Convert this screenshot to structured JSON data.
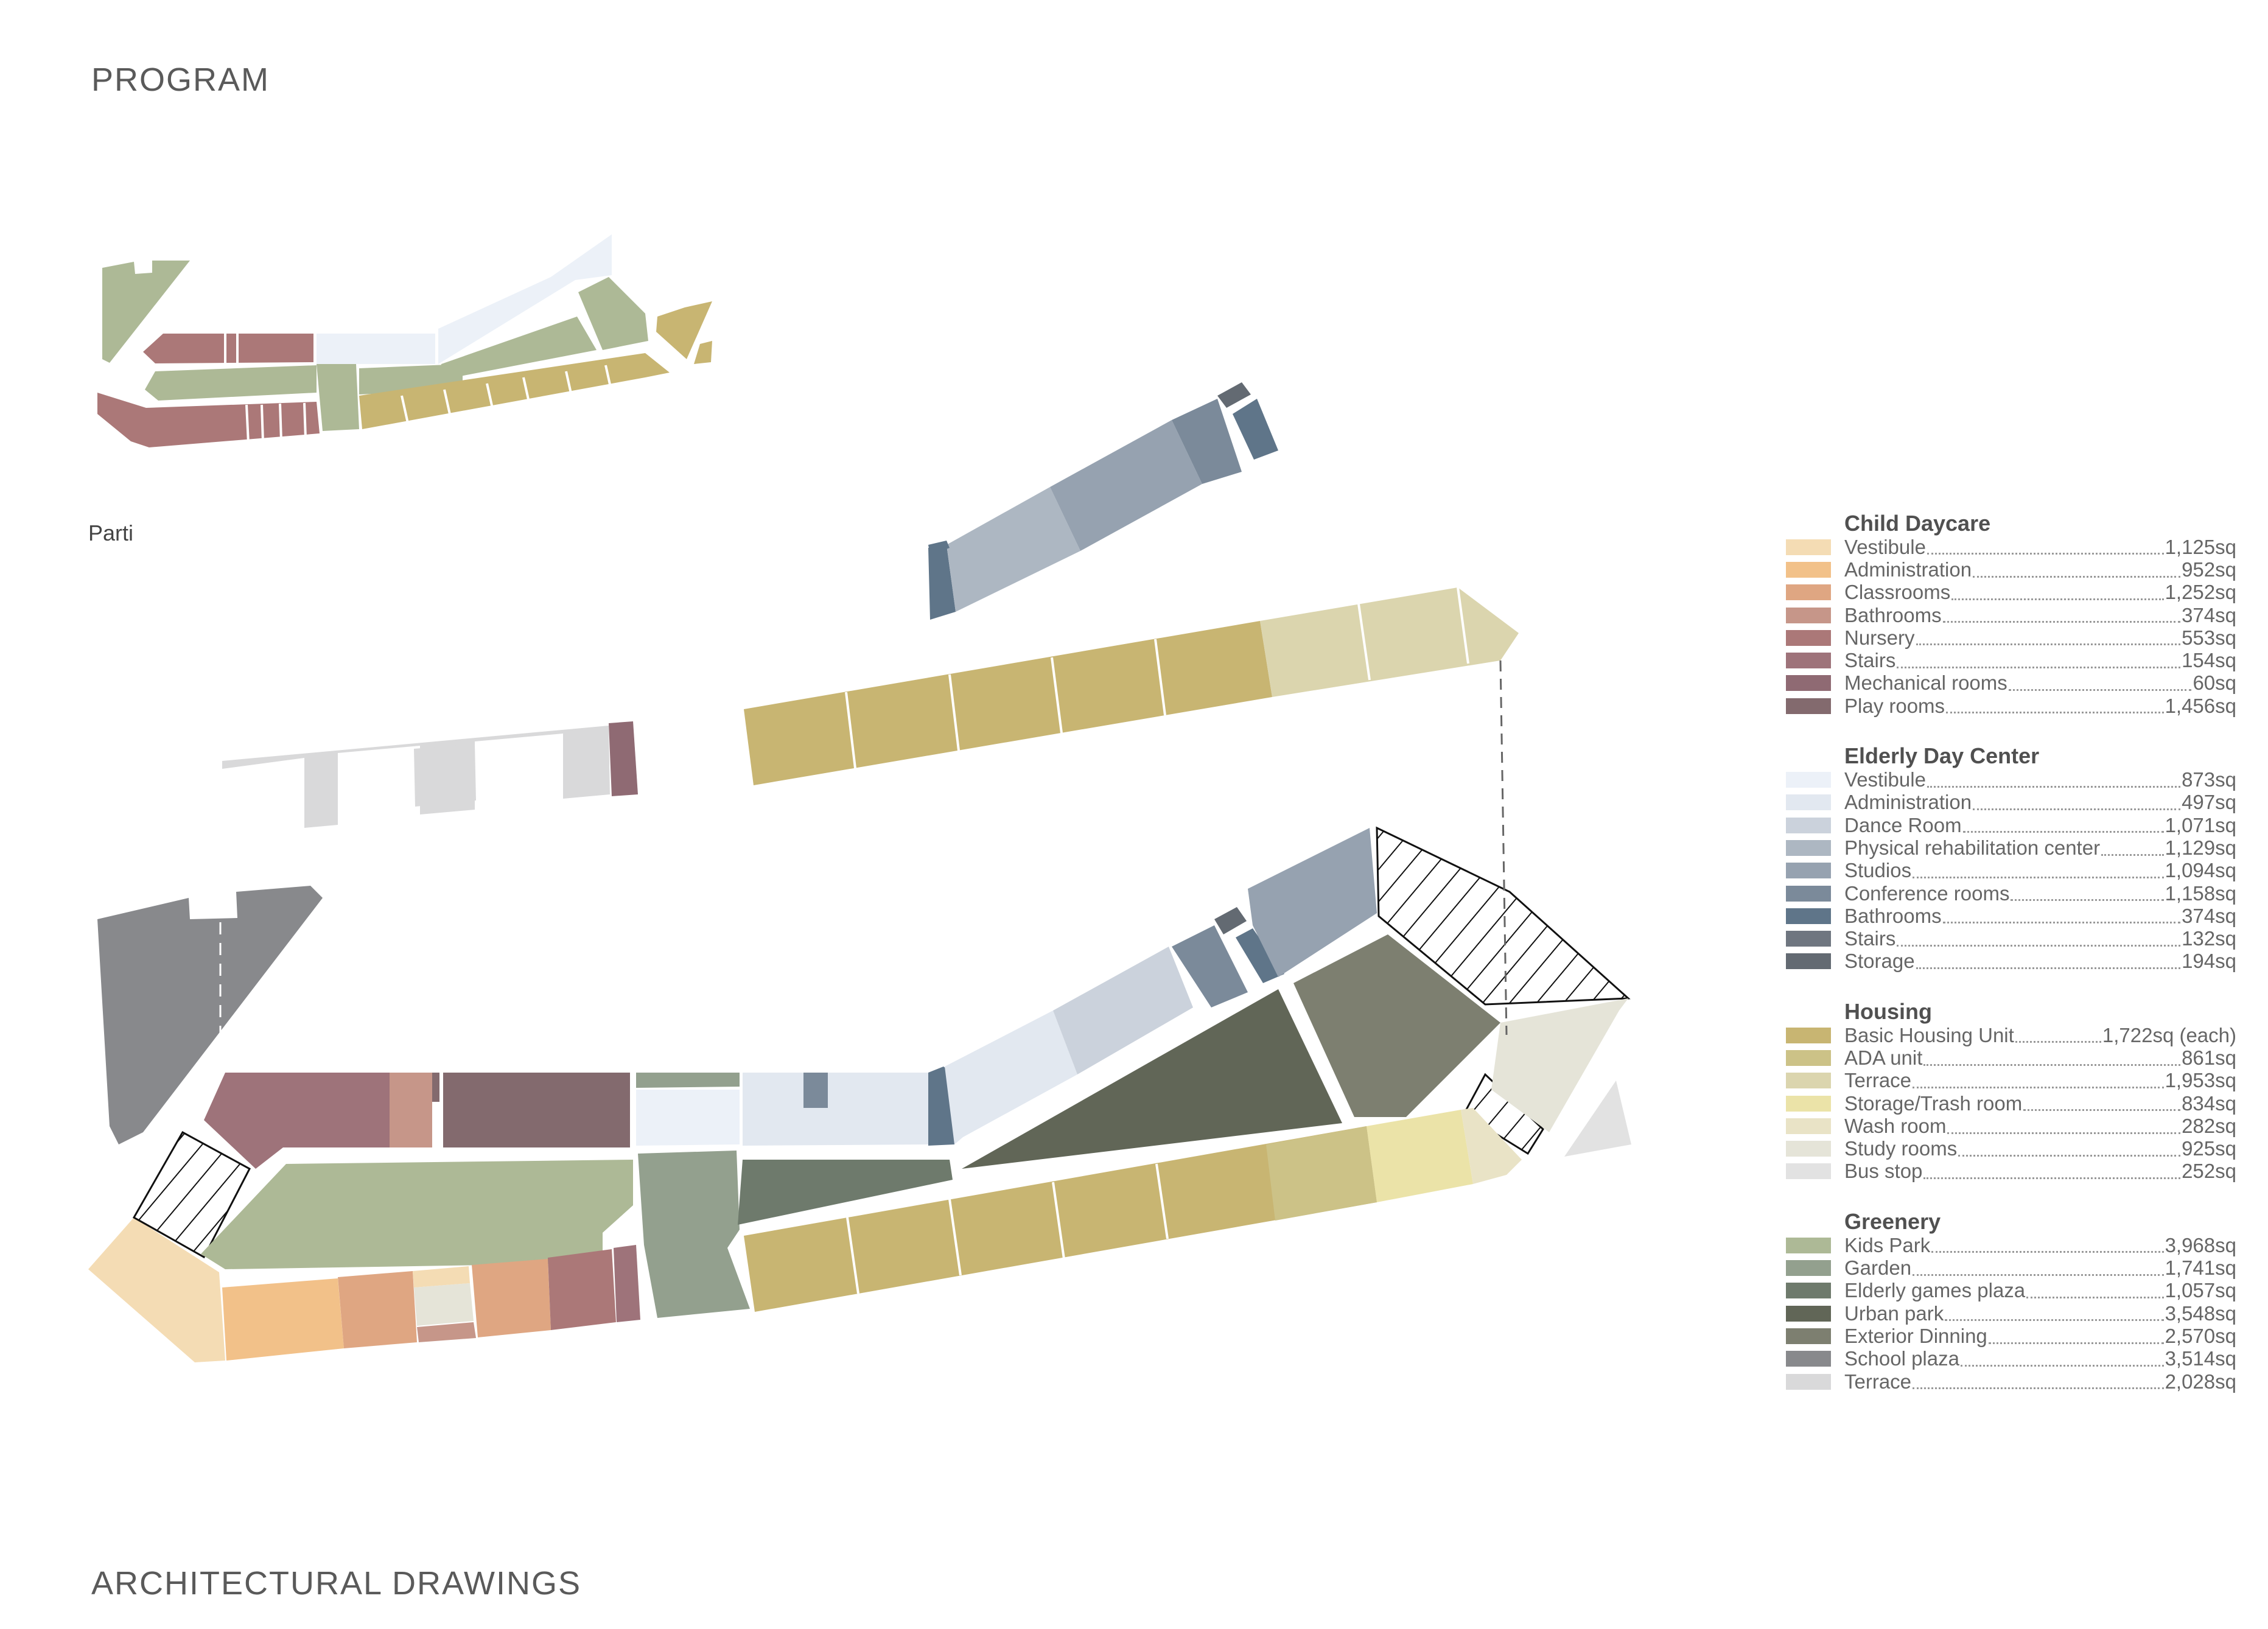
{
  "titles": {
    "program": "PROGRAM",
    "parti": "Parti",
    "drawings": "ARCHITECTURAL DRAWINGS"
  },
  "legend": [
    {
      "title": "Child Daycare",
      "items": [
        {
          "label": "Vestibule",
          "value": "1,125sq",
          "color": "#f4dcb4"
        },
        {
          "label": "Administration",
          "value": "952sq",
          "color": "#f2c189"
        },
        {
          "label": "Classrooms",
          "value": "1,252sq",
          "color": "#dfa682"
        },
        {
          "label": "Bathrooms",
          "value": "374sq",
          "color": "#c69689"
        },
        {
          "label": "Nursery",
          "value": "553sq",
          "color": "#ab7878"
        },
        {
          "label": "Stairs",
          "value": "154sq",
          "color": "#9e737a"
        },
        {
          "label": "Mechanical rooms",
          "value": "60sq",
          "color": "#8f6a73"
        },
        {
          "label": "Play rooms",
          "value": "1,456sq",
          "color": "#836a6e"
        }
      ]
    },
    {
      "title": "Elderly Day Center",
      "items": [
        {
          "label": "Vestibule",
          "value": "873sq",
          "color": "#ecf1f8"
        },
        {
          "label": "Administration",
          "value": "497sq",
          "color": "#e2e8f0"
        },
        {
          "label": "Dance Room",
          "value": "1,071sq",
          "color": "#cbd2dc"
        },
        {
          "label": "Physical rehabilitation center",
          "value": "1,129sq",
          "color": "#adb7c2"
        },
        {
          "label": "Studios",
          "value": "1,094sq",
          "color": "#96a2b0"
        },
        {
          "label": "Conference rooms",
          "value": "1,158sq",
          "color": "#7b8a9a"
        },
        {
          "label": "Bathrooms",
          "value": "374sq",
          "color": "#5f7589"
        },
        {
          "label": "Stairs",
          "value": "132sq",
          "color": "#6f7680"
        },
        {
          "label": "Storage",
          "value": "194sq",
          "color": "#636a72"
        }
      ]
    },
    {
      "title": "Housing",
      "items": [
        {
          "label": "Basic Housing Unit",
          "value": "1,722sq (each)",
          "color": "#c8b572"
        },
        {
          "label": "ADA unit",
          "value": "861sq",
          "color": "#ccc287"
        },
        {
          "label": "Terrace",
          "value": "1,953sq",
          "color": "#dbd5ae"
        },
        {
          "label": "Storage/Trash room",
          "value": "834sq",
          "color": "#ebe3a8"
        },
        {
          "label": "Wash room",
          "value": "282sq",
          "color": "#e9e3c6"
        },
        {
          "label": "Study rooms",
          "value": "925sq",
          "color": "#e5e4d8"
        },
        {
          "label": "Bus stop",
          "value": "252sq",
          "color": "#e2e2e2"
        }
      ]
    },
    {
      "title": "Greenery",
      "items": [
        {
          "label": "Kids Park",
          "value": "3,968sq",
          "color": "#adb996"
        },
        {
          "label": "Garden",
          "value": "1,741sq",
          "color": "#93a08e"
        },
        {
          "label": "Elderly games plaza",
          "value": "1,057sq",
          "color": "#6e7a6c"
        },
        {
          "label": "Urban park",
          "value": "3,548sq",
          "color": "#616657"
        },
        {
          "label": "Exterior Dinning",
          "value": "2,570sq",
          "color": "#7d7f70"
        },
        {
          "label": "School plaza",
          "value": "3,514sq",
          "color": "#88898c"
        },
        {
          "label": "Terrace",
          "value": "2,028sq",
          "color": "#d9d9da"
        }
      ]
    }
  ]
}
